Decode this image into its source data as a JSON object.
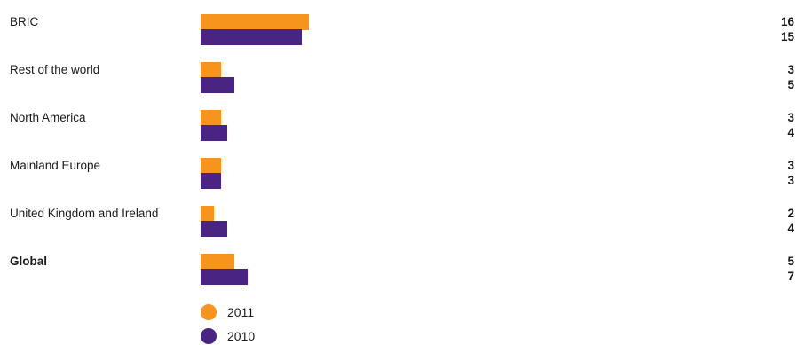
{
  "chart_data": {
    "type": "bar",
    "orientation": "horizontal",
    "categories": [
      "BRIC",
      "Rest of the world",
      "North America",
      "Mainland Europe",
      "United Kingdom and Ireland",
      "Global"
    ],
    "bold_categories": [
      "Global"
    ],
    "series": [
      {
        "name": "2011",
        "color": "#f7941d",
        "values": [
          16,
          3,
          3,
          3,
          2,
          5
        ]
      },
      {
        "name": "2010",
        "color": "#4a2483",
        "values": [
          15,
          5,
          4,
          3,
          4,
          7
        ]
      }
    ],
    "xlim": [
      0,
      80
    ],
    "grid": false,
    "legend_position": "bottom-left"
  }
}
